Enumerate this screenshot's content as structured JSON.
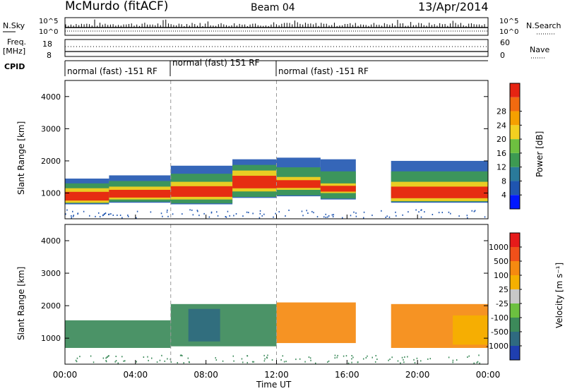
{
  "header": {
    "station": "McMurdo (fitACF)",
    "beam": "Beam 04",
    "date": "13/Apr/2014"
  },
  "top_panels": {
    "nsky_label": "N.Sky",
    "nsky_ticks": [
      "10^5",
      "10^0"
    ],
    "nsearch_label": "N.Search",
    "nsearch_ticks": [
      "10^5",
      "10^0"
    ],
    "freq_label": "Freq.",
    "freq_unit": "[MHz]",
    "freq_ticks": [
      "18",
      "8"
    ],
    "nave_label": "Nave",
    "nave_ticks": [
      "60",
      "0"
    ],
    "cpid_label": "CPID"
  },
  "cpid_segments": [
    {
      "start_hour": 0.0,
      "label": "normal (fast) -151 RF"
    },
    {
      "start_hour": 6.0,
      "label": "normal (fast) 151 RF"
    },
    {
      "start_hour": 12.0,
      "label": "normal (fast) -151 RF"
    }
  ],
  "chart_data": [
    {
      "type": "heatmap",
      "quantity": "Power",
      "ylabel": "Slant Range [km]",
      "xlim_hours": [
        0,
        24
      ],
      "ylim_km": [
        200,
        4500
      ],
      "yticks": [
        "1000",
        "2000",
        "3000",
        "4000"
      ],
      "colorbar_label": "Power [dB]",
      "colorbar_ticks": [
        "4",
        "8",
        "12",
        "16",
        "20",
        "24",
        "28"
      ],
      "colorbar_colors": [
        "#0018ff",
        "#1f55b0",
        "#2a7a9a",
        "#3d9a52",
        "#6ec040",
        "#f2d020",
        "#f5a000",
        "#f26a10",
        "#e62412"
      ],
      "echo_bands": [
        {
          "start": 0.0,
          "end": 2.5,
          "low": 650,
          "high": 1450,
          "core_low": 700,
          "core_high": 1150
        },
        {
          "start": 2.5,
          "end": 6.0,
          "low": 700,
          "high": 1550,
          "core_low": 800,
          "core_high": 1200
        },
        {
          "start": 6.0,
          "end": 9.5,
          "low": 650,
          "high": 1850,
          "core_low": 800,
          "core_high": 1350
        },
        {
          "start": 9.5,
          "end": 12.0,
          "low": 850,
          "high": 2050,
          "core_low": 1050,
          "core_high": 1700
        },
        {
          "start": 12.0,
          "end": 14.5,
          "low": 900,
          "high": 2100,
          "core_low": 1100,
          "core_high": 1500
        },
        {
          "start": 14.5,
          "end": 16.5,
          "low": 800,
          "high": 2050,
          "core_low": 1000,
          "core_high": 1300
        },
        {
          "start": 18.5,
          "end": 24.0,
          "low": 700,
          "high": 2000,
          "core_low": 750,
          "core_high": 1350
        }
      ]
    },
    {
      "type": "heatmap",
      "quantity": "Velocity",
      "ylabel": "Slant Range [km]",
      "xlabel": "Time UT",
      "xlim_hours": [
        0,
        24
      ],
      "ylim_km": [
        200,
        4500
      ],
      "xticks": [
        "00:00",
        "04:00",
        "08:00",
        "12:00",
        "16:00",
        "20:00",
        "00:00"
      ],
      "yticks": [
        "1000",
        "2000",
        "3000",
        "4000"
      ],
      "colorbar_label": "Velocity [m s⁻¹]",
      "colorbar_ticks": [
        "1000",
        "500",
        "100",
        "25",
        "-25",
        "-100",
        "-500",
        "-1000"
      ],
      "colorbar_colors": [
        "#1f3fb0",
        "#2f6a80",
        "#3c8a5a",
        "#6cc040",
        "#c8c8c8",
        "#f5b000",
        "#f58a10",
        "#f0501a",
        "#e61a1a"
      ],
      "echo_bands": [
        {
          "start": 0.0,
          "end": 6.0,
          "low": 700,
          "high": 1550,
          "value": "100"
        },
        {
          "start": 6.0,
          "end": 12.0,
          "low": 750,
          "high": 2050,
          "value": "100"
        },
        {
          "start": 7.0,
          "end": 8.8,
          "low": 900,
          "high": 1900,
          "value": "500"
        },
        {
          "start": 12.0,
          "end": 16.5,
          "low": 850,
          "high": 2100,
          "value": "-100"
        },
        {
          "start": 18.5,
          "end": 24.0,
          "low": 700,
          "high": 2050,
          "value": "-100"
        },
        {
          "start": 22.0,
          "end": 24.0,
          "low": 800,
          "high": 1700,
          "value": "-25"
        }
      ]
    }
  ]
}
